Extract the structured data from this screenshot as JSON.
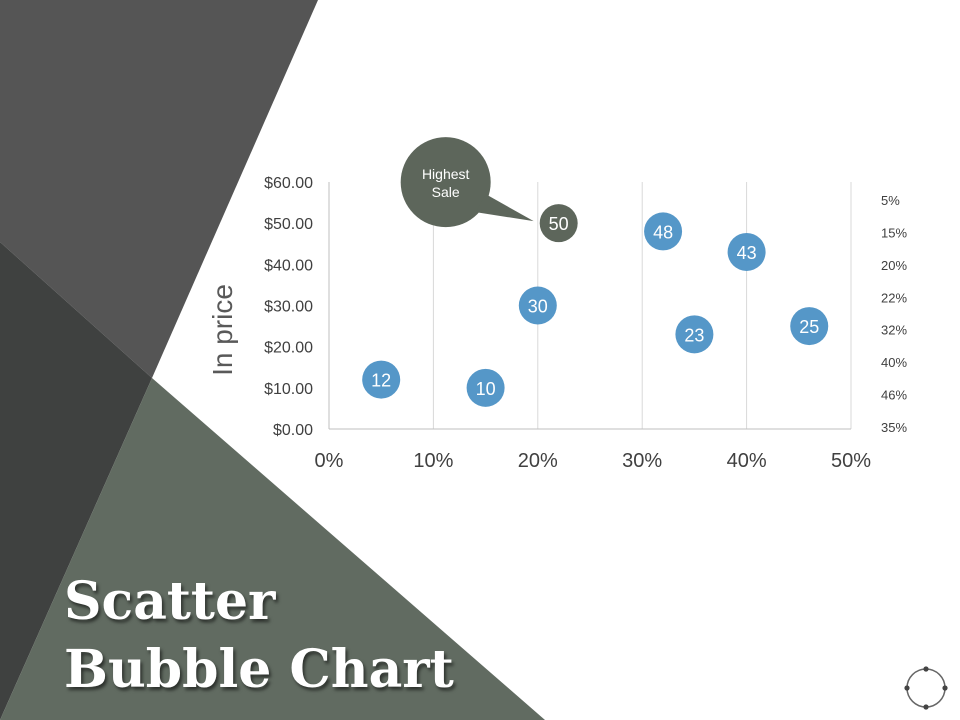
{
  "slide": {
    "title_line1": "Scatter",
    "title_line2": "Bubble Chart",
    "colors": {
      "dark_gray": "#555555",
      "darker_gray": "#3f4140",
      "green_gray": "#616b61",
      "bubble_blue": "#5597c8",
      "bubble_highlight": "#5d665b"
    }
  },
  "chart_data": {
    "type": "scatter",
    "ylabel": "In price",
    "xlim": [
      0,
      50
    ],
    "ylim": [
      0,
      60
    ],
    "x_ticks": [
      "0%",
      "10%",
      "20%",
      "30%",
      "40%",
      "50%"
    ],
    "y_ticks": [
      "$0.00",
      "$10.00",
      "$20.00",
      "$30.00",
      "$40.00",
      "$50.00",
      "$60.00"
    ],
    "right_labels": [
      "5%",
      "15%",
      "20%",
      "22%",
      "32%",
      "40%",
      "46%",
      "35%"
    ],
    "grid": "vertical",
    "points": [
      {
        "x": 5,
        "y": 12,
        "label": "12"
      },
      {
        "x": 15,
        "y": 10,
        "label": "10"
      },
      {
        "x": 20,
        "y": 30,
        "label": "30"
      },
      {
        "x": 22,
        "y": 50,
        "label": "50",
        "highlight": true
      },
      {
        "x": 32,
        "y": 48,
        "label": "48"
      },
      {
        "x": 35,
        "y": 23,
        "label": "23"
      },
      {
        "x": 40,
        "y": 43,
        "label": "43"
      },
      {
        "x": 46,
        "y": 25,
        "label": "25"
      }
    ],
    "annotation": {
      "lines": [
        "Highest",
        "Sale"
      ],
      "target": "50"
    }
  }
}
